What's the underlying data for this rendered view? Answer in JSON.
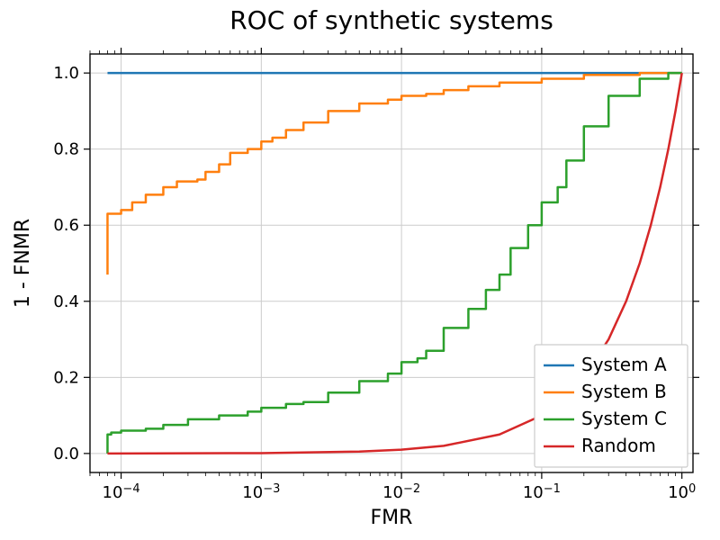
{
  "chart": {
    "type": "line",
    "title": "ROC of synthetic systems",
    "title_fontsize": 28,
    "xlabel": "FMR",
    "ylabel": "1 - FNMR",
    "label_fontsize": 22,
    "tick_fontsize": 18,
    "background_color": "#ffffff",
    "grid_color": "#cccccc",
    "axis_color": "#000000",
    "x_scale": "log",
    "y_scale": "linear",
    "xlim": [
      6e-05,
      1.2
    ],
    "ylim": [
      -0.05,
      1.05
    ],
    "x_ticks": [
      0.0001,
      0.001,
      0.01,
      0.1,
      1
    ],
    "x_tick_labels": [
      "10⁻⁴",
      "10⁻³",
      "10⁻²",
      "10⁻¹",
      "10⁰"
    ],
    "y_ticks": [
      0.0,
      0.2,
      0.4,
      0.6,
      0.8,
      1.0
    ],
    "y_tick_labels": [
      "0.0",
      "0.2",
      "0.4",
      "0.6",
      "0.8",
      "1.0"
    ],
    "line_width": 2.5,
    "legend": {
      "position": "lower-right",
      "border_color": "#cccccc",
      "background_color": "#ffffff",
      "fontsize": 20
    },
    "series": [
      {
        "name": "System A",
        "color": "#1f77b4",
        "x": [
          8e-05,
          0.08,
          0.1,
          1.0
        ],
        "y": [
          1.0,
          1.0,
          1.0,
          1.0
        ]
      },
      {
        "name": "System B",
        "color": "#ff7f0e",
        "x": [
          8e-05,
          8.5e-05,
          0.0001,
          0.00012,
          0.00015,
          0.0002,
          0.00025,
          0.0003,
          0.00035,
          0.0004,
          0.0005,
          0.0006,
          0.0008,
          0.001,
          0.0012,
          0.0015,
          0.002,
          0.003,
          0.005,
          0.008,
          0.01,
          0.015,
          0.02,
          0.03,
          0.05,
          0.1,
          0.2,
          0.5,
          1.0
        ],
        "y": [
          0.47,
          0.63,
          0.63,
          0.64,
          0.66,
          0.68,
          0.7,
          0.715,
          0.715,
          0.72,
          0.74,
          0.76,
          0.79,
          0.8,
          0.82,
          0.83,
          0.85,
          0.87,
          0.9,
          0.92,
          0.93,
          0.94,
          0.945,
          0.955,
          0.965,
          0.975,
          0.985,
          0.995,
          1.0
        ]
      },
      {
        "name": "System C",
        "color": "#2ca02c",
        "x": [
          8e-05,
          8.5e-05,
          0.0001,
          0.00015,
          0.0002,
          0.0003,
          0.0005,
          0.0008,
          0.001,
          0.0015,
          0.002,
          0.003,
          0.005,
          0.008,
          0.01,
          0.013,
          0.015,
          0.02,
          0.03,
          0.04,
          0.05,
          0.06,
          0.08,
          0.1,
          0.13,
          0.15,
          0.2,
          0.3,
          0.5,
          0.8,
          1.0
        ],
        "y": [
          0.0,
          0.05,
          0.055,
          0.06,
          0.065,
          0.075,
          0.09,
          0.1,
          0.11,
          0.12,
          0.13,
          0.135,
          0.16,
          0.19,
          0.21,
          0.24,
          0.25,
          0.27,
          0.33,
          0.38,
          0.43,
          0.47,
          0.54,
          0.6,
          0.66,
          0.7,
          0.77,
          0.86,
          0.94,
          0.985,
          1.0
        ]
      },
      {
        "name": "Random",
        "color": "#d62728",
        "x": [
          8e-05,
          0.001,
          0.005,
          0.01,
          0.02,
          0.05,
          0.1,
          0.2,
          0.3,
          0.4,
          0.5,
          0.6,
          0.7,
          0.8,
          0.9,
          1.0
        ],
        "y": [
          0.0,
          0.001,
          0.005,
          0.01,
          0.02,
          0.05,
          0.1,
          0.2,
          0.3,
          0.4,
          0.5,
          0.6,
          0.7,
          0.8,
          0.9,
          1.0
        ]
      }
    ]
  }
}
